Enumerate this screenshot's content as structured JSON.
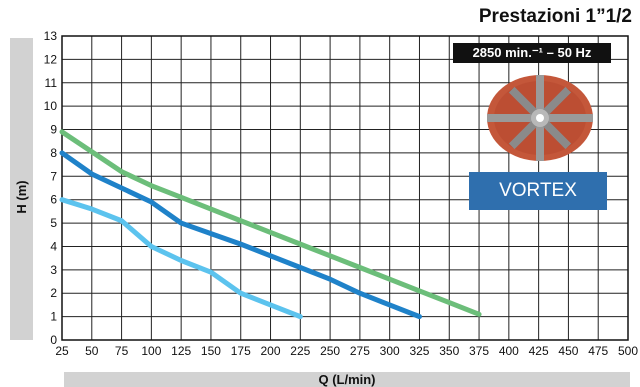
{
  "header": {
    "title": "Prestazioni 1”1/2",
    "speed_badge": "2850 min.⁻¹ – 50 Hz"
  },
  "impeller_label": "VORTEX",
  "chart_data": {
    "type": "line",
    "title": "Prestazioni 1”1/2",
    "xlabel": "Q (L/min)",
    "ylabel": "H (m)",
    "xlim": [
      25,
      500
    ],
    "ylim": [
      0,
      13
    ],
    "xticks": [
      25,
      50,
      75,
      100,
      125,
      150,
      175,
      200,
      225,
      250,
      275,
      300,
      325,
      350,
      375,
      400,
      425,
      450,
      475,
      500
    ],
    "yticks": [
      0,
      1,
      2,
      3,
      4,
      5,
      6,
      7,
      8,
      9,
      10,
      11,
      12,
      13
    ],
    "grid": true,
    "series": [
      {
        "color": "#5cc3ee",
        "x": [
          25,
          50,
          75,
          100,
          125,
          150,
          175,
          200,
          225
        ],
        "y": [
          6,
          5.6,
          5.1,
          4.0,
          3.4,
          2.9,
          2.0,
          1.5,
          1.0
        ]
      },
      {
        "color": "#1f82c9",
        "x": [
          25,
          50,
          75,
          100,
          125,
          150,
          175,
          200,
          225,
          250,
          275,
          300,
          325
        ],
        "y": [
          8,
          7.1,
          6.5,
          5.9,
          5.0,
          4.55,
          4.1,
          3.6,
          3.1,
          2.6,
          2.0,
          1.5,
          1.0
        ]
      },
      {
        "color": "#6cbe7a",
        "x": [
          25,
          75,
          100,
          125,
          150,
          175,
          200,
          225,
          250,
          275,
          300,
          325,
          350,
          375
        ],
        "y": [
          8.9,
          7.2,
          6.6,
          6.1,
          5.6,
          5.1,
          4.6,
          4.1,
          3.6,
          3.1,
          2.6,
          2.1,
          1.6,
          1.1
        ]
      }
    ]
  }
}
